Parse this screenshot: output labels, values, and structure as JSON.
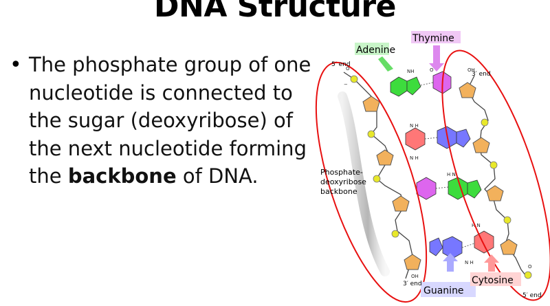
{
  "slide": {
    "title": "DNA Structure",
    "bullet": {
      "symbol": "•",
      "text_before": "The phosphate group of one nucleotide is connected to the sugar (deoxyribose) of the next nucleotide forming the ",
      "bold_word": "backbone",
      "text_after": " of DNA."
    }
  },
  "figure": {
    "labels": {
      "adenine": "Adenine",
      "thymine": "Thymine",
      "guanine": "Guanine",
      "cytosine": "Cytosine",
      "five_prime_top": "5′ end",
      "three_prime_top": "3′ end",
      "three_prime_bottom": "3′ end",
      "five_prime_bottom": "5′ end",
      "backbone_1": "Phosphate-",
      "backbone_2": "deoxyribose",
      "backbone_3": "backbone"
    },
    "colors": {
      "adenine": "#3ddc3d",
      "thymine": "#dd66ee",
      "guanine": "#7777ff",
      "cytosine": "#ff7777",
      "sugar": "#f2b15c",
      "phosphate": "#e8e82a",
      "oval": "#e81010"
    }
  }
}
